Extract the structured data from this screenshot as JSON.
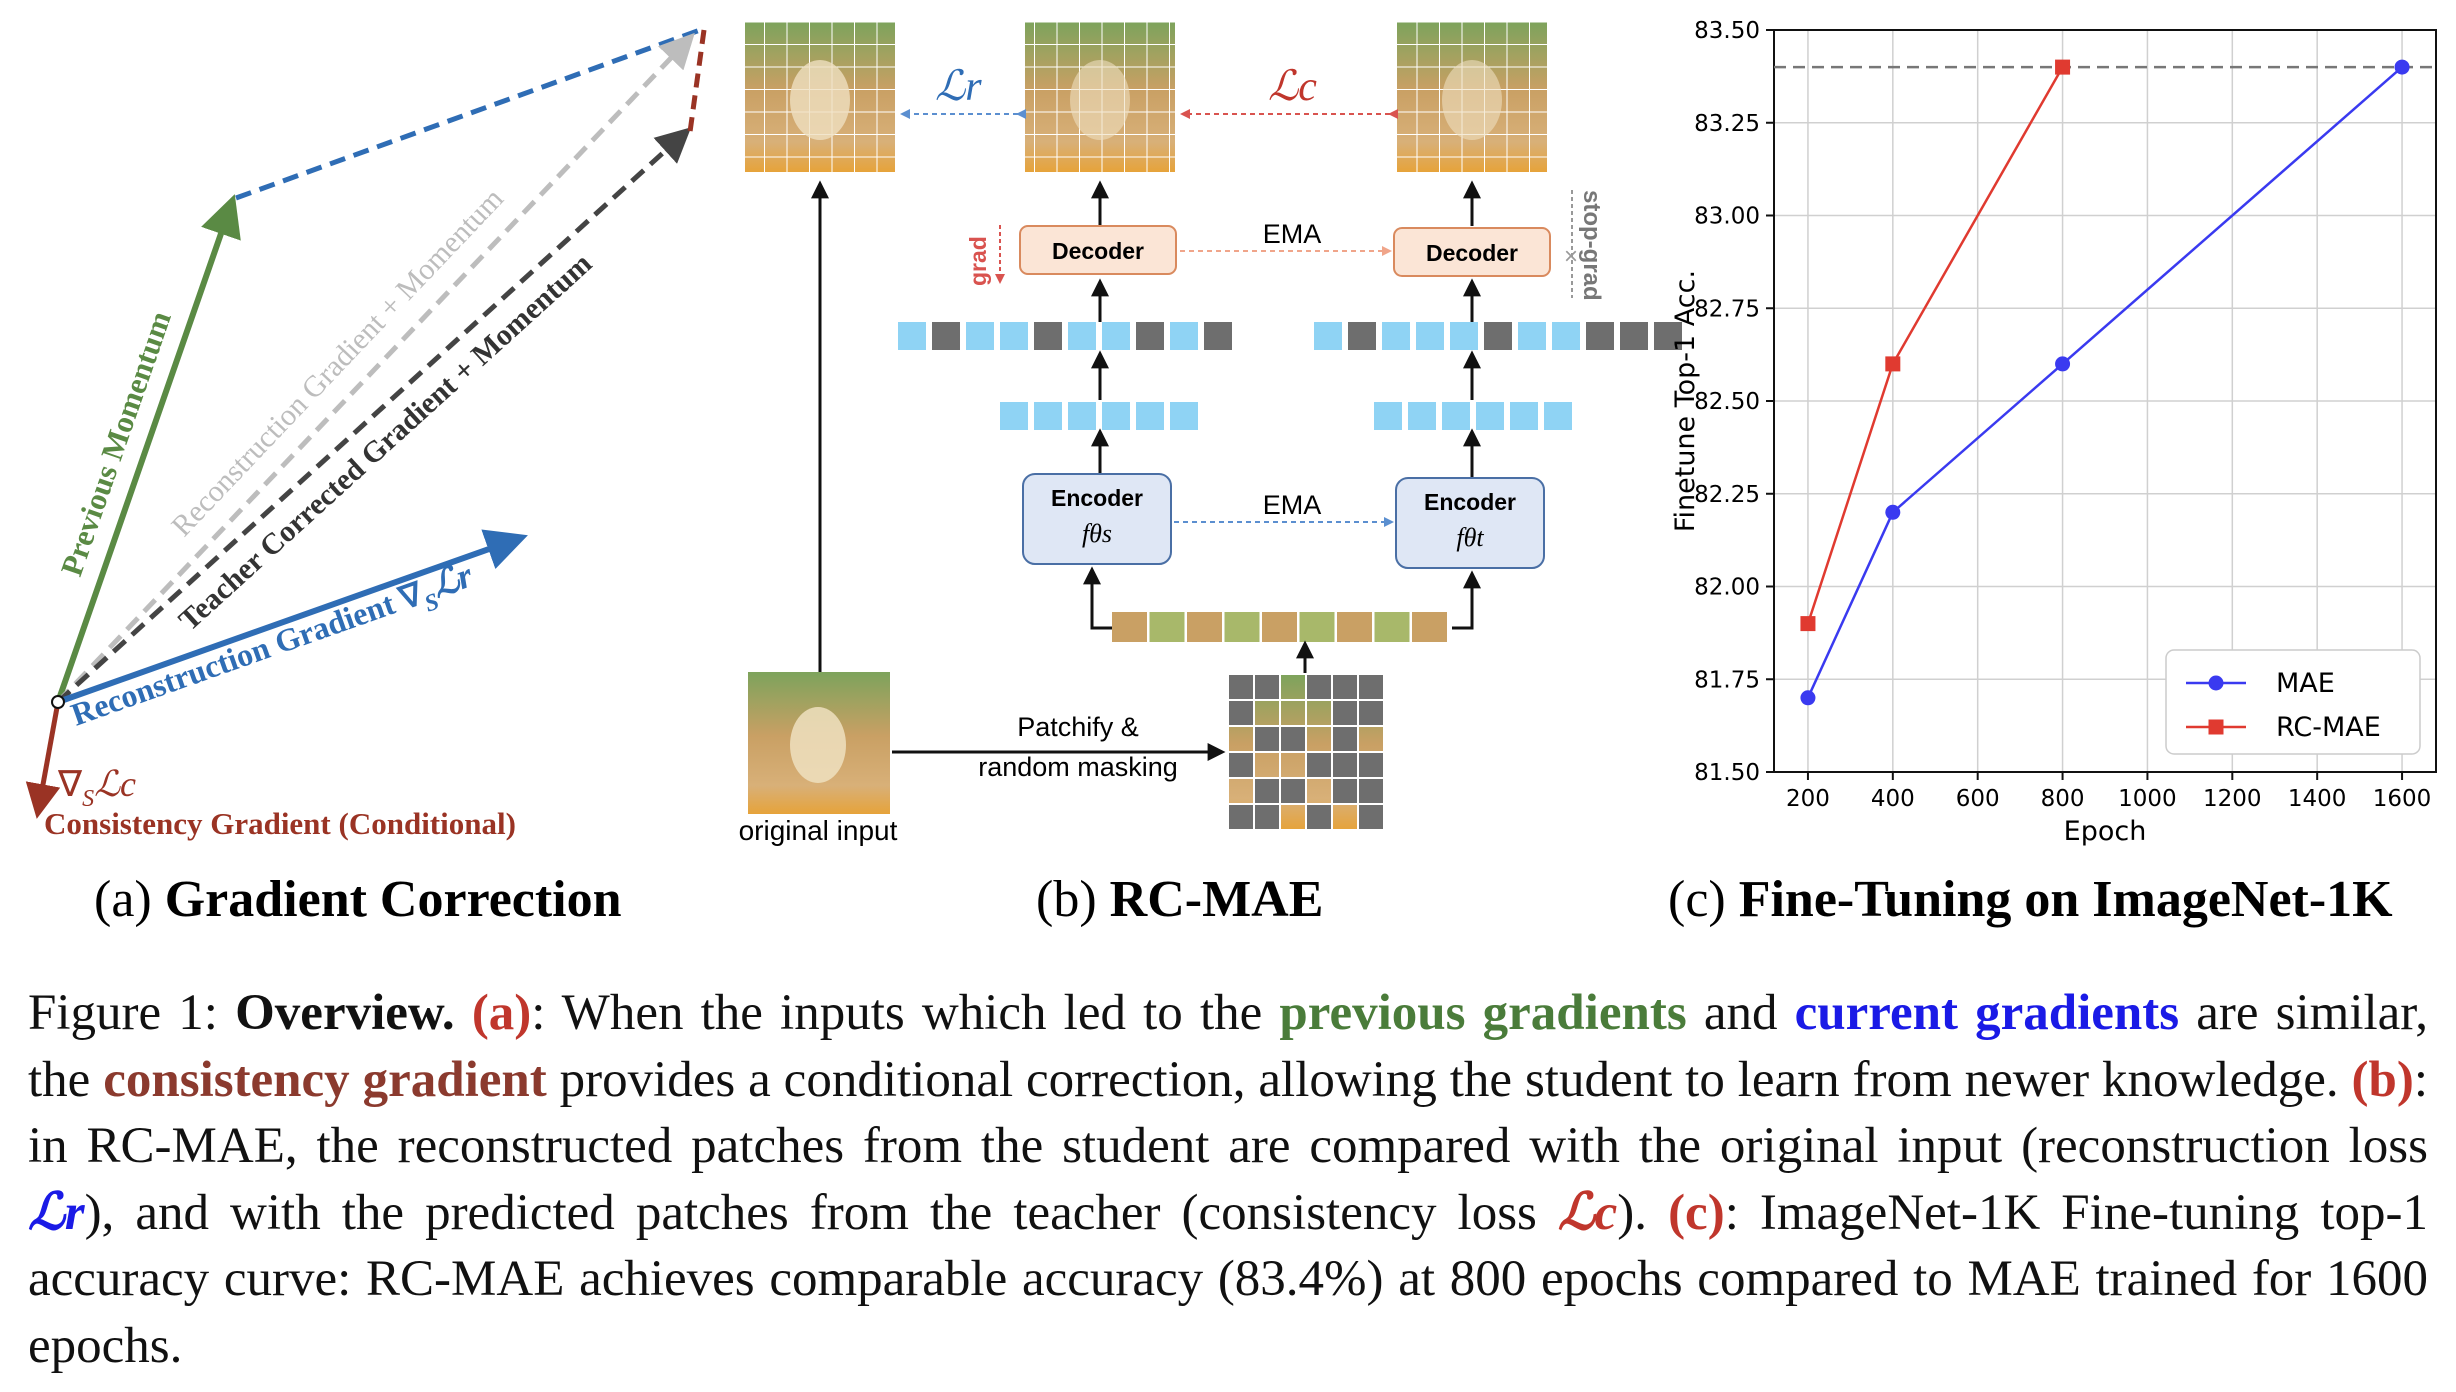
{
  "panel_a": {
    "previous_momentum": "Previous Momentum",
    "recon_momentum": "Reconstruction Gradient + Momentum",
    "teacher_corrected": "Teacher Corrected Gradient + Momentum",
    "recon_gradient": "Reconstruction Gradient ∇",
    "recon_gradient_sub": "S",
    "recon_gradient_loss": "ℒr",
    "consistency_symbol": "∇",
    "consistency_sub": "S",
    "consistency_loss": "ℒc",
    "consistency_label": "Consistency Gradient (Conditional)",
    "colors": {
      "green": "#5a8a44",
      "blue": "#2f6db5",
      "gray": "#bdbdbd",
      "dark": "#444444",
      "brown": "#9a3324"
    }
  },
  "panel_b": {
    "loss_r": "ℒr",
    "loss_c": "ℒc",
    "ema_top": "EMA",
    "ema_mid": "EMA",
    "grad": "grad",
    "stop_grad": "stop-grad",
    "decoder": "Decoder",
    "encoder": "Encoder",
    "encoder_s_sym": "fθs",
    "encoder_t_sym": "fθt",
    "patchify_line1": "Patchify &",
    "patchify_line2": "random masking",
    "original_input": "original input",
    "colors": {
      "token": "#8fd3f4",
      "masked": "#6e6e6e",
      "box": "#dfe7f5",
      "decoder_box": "#fbe5d6"
    }
  },
  "subcaptions": {
    "a_prefix": "(a)",
    "a_title": "Gradient Correction",
    "b_prefix": "(b)",
    "b_title": "RC-MAE",
    "c_prefix": "(c)",
    "c_title": "Fine-Tuning on ImageNet-1K"
  },
  "chart_data": {
    "type": "line",
    "x": [
      200,
      400,
      800,
      1600
    ],
    "series": [
      {
        "name": "MAE",
        "color": "#3a3af0",
        "marker": "circle",
        "x": [
          200,
          400,
          800,
          1600
        ],
        "values": [
          81.7,
          82.2,
          82.6,
          83.4
        ]
      },
      {
        "name": "RC-MAE",
        "color": "#e03a30",
        "marker": "square",
        "x": [
          200,
          400,
          800
        ],
        "values": [
          81.9,
          82.6,
          83.4
        ]
      }
    ],
    "hline": 83.4,
    "xlabel": "Epoch",
    "ylabel": "Finetune Top-1 Acc.",
    "xlim": [
      120,
      1680
    ],
    "ylim": [
      81.5,
      83.5
    ],
    "xticks": [
      "200",
      "400",
      "600",
      "800",
      "1000",
      "1200",
      "1400",
      "1600"
    ],
    "yticks": [
      "81.50",
      "81.75",
      "82.00",
      "82.25",
      "82.50",
      "82.75",
      "83.00",
      "83.25",
      "83.50"
    ],
    "grid": true,
    "legend": "lower-right"
  },
  "caption": {
    "fig_label": "Figure 1:",
    "overview": "Overview.",
    "a_tag": "(a)",
    "t1": ": When the inputs which led to the ",
    "previous_gradients": "previous gradients",
    "t2": " and ",
    "current_gradients": "current gradients",
    "t3": " are similar, the ",
    "consistency_gradient": "consistency gradient",
    "t4": " provides a conditional correction, allowing the student to learn from newer knowledge. ",
    "b_tag": "(b)",
    "t5": ": in RC-MAE, the reconstructed patches from the student are compared with the original input (reconstruction loss ",
    "lr": "ℒr",
    "t6": "), and with the predicted patches from the teacher (consistency loss ",
    "lc": "ℒc",
    "t7": "). ",
    "c_tag": "(c)",
    "t8": ": ImageNet-1K Fine-tuning top-1 accuracy curve: RC-MAE achieves comparable accuracy (83.4%) at 800 epochs compared to MAE trained for 1600 epochs."
  }
}
